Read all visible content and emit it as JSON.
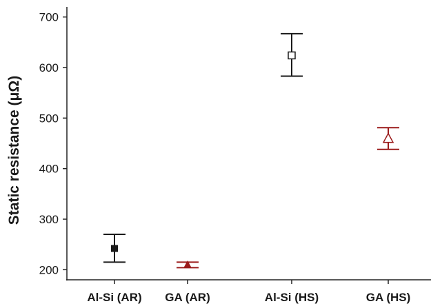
{
  "chart_data": {
    "type": "scatter",
    "title": "",
    "xlabel": "",
    "ylabel": "Static resistance (μΩ)",
    "ylim": [
      180,
      720
    ],
    "yticks": [
      200,
      300,
      400,
      500,
      600,
      700
    ],
    "ytick_labels": [
      "200",
      "300",
      "400",
      "500",
      "600",
      "700"
    ],
    "grid": false,
    "legend": "none",
    "categories": [
      "Al-Si (AR)",
      "GA (AR)",
      "Al-Si (HS)",
      "GA (HS)"
    ],
    "points": [
      {
        "category": "Al-Si (AR)",
        "mean": 242,
        "low": 215,
        "high": 270,
        "color": "#1a1a1a",
        "marker": "filled-square"
      },
      {
        "category": "GA (AR)",
        "mean": 210,
        "low": 204,
        "high": 215,
        "color": "#9b1b1b",
        "marker": "filled-triangle"
      },
      {
        "category": "Al-Si (HS)",
        "mean": 624,
        "low": 583,
        "high": 667,
        "color": "#1a1a1a",
        "marker": "open-square"
      },
      {
        "category": "GA (HS)",
        "mean": 460,
        "low": 438,
        "high": 481,
        "color": "#9b1b1b",
        "marker": "open-triangle"
      }
    ]
  }
}
